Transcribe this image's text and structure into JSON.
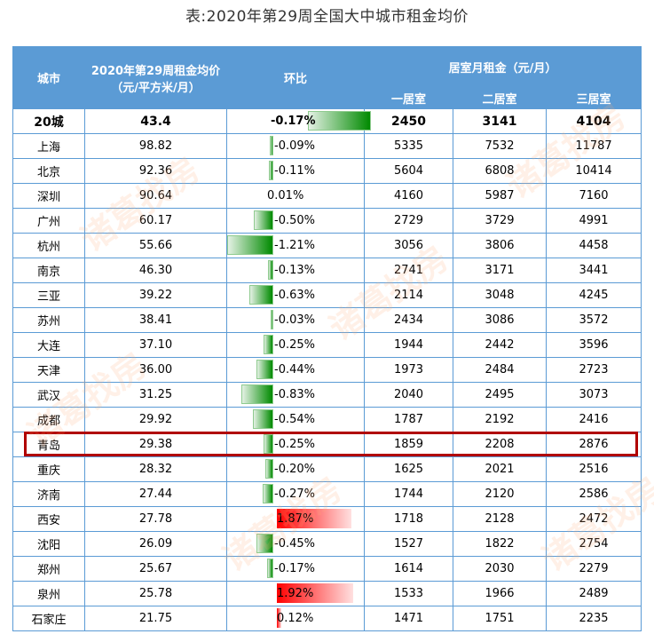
{
  "title": "表:2020年第29周全国大中城市租金均价",
  "watermark": "诸葛找房",
  "header": {
    "city": "城市",
    "price_line1": "2020年第29周租金均价",
    "price_line2": "（元/平方米/月）",
    "change": "环比",
    "rent_group": "居室月租金（元/月）",
    "room1": "一居室",
    "room2": "二居室",
    "room3": "三居室"
  },
  "colors": {
    "header_bg": "#5b9bd5",
    "grid": "#5b9bd5",
    "neg_bar": "#008a00",
    "pos_bar": "#ff0000",
    "highlight": "#b00000"
  },
  "highlighted_city": "青岛",
  "rows": [
    {
      "city": "20城",
      "price": "43.4",
      "change": "-0.17%",
      "change_val": -0.17,
      "r1": "2450",
      "r2": "3141",
      "r3": "4104",
      "total": true
    },
    {
      "city": "上海",
      "price": "98.82",
      "change": "-0.09%",
      "change_val": -0.09,
      "r1": "5335",
      "r2": "7532",
      "r3": "11787"
    },
    {
      "city": "北京",
      "price": "92.36",
      "change": "-0.11%",
      "change_val": -0.11,
      "r1": "5604",
      "r2": "6808",
      "r3": "10414"
    },
    {
      "city": "深圳",
      "price": "90.64",
      "change": "0.01%",
      "change_val": 0.01,
      "r1": "4160",
      "r2": "5987",
      "r3": "7160"
    },
    {
      "city": "广州",
      "price": "60.17",
      "change": "-0.50%",
      "change_val": -0.5,
      "r1": "2729",
      "r2": "3729",
      "r3": "4991"
    },
    {
      "city": "杭州",
      "price": "55.66",
      "change": "-1.21%",
      "change_val": -1.21,
      "r1": "3056",
      "r2": "3806",
      "r3": "4458"
    },
    {
      "city": "南京",
      "price": "46.30",
      "change": "-0.13%",
      "change_val": -0.13,
      "r1": "2741",
      "r2": "3171",
      "r3": "3441"
    },
    {
      "city": "三亚",
      "price": "39.22",
      "change": "-0.63%",
      "change_val": -0.63,
      "r1": "2114",
      "r2": "3048",
      "r3": "4245"
    },
    {
      "city": "苏州",
      "price": "38.41",
      "change": "-0.03%",
      "change_val": -0.03,
      "r1": "2434",
      "r2": "3086",
      "r3": "3572"
    },
    {
      "city": "大连",
      "price": "37.10",
      "change": "-0.25%",
      "change_val": -0.25,
      "r1": "1944",
      "r2": "2442",
      "r3": "3596"
    },
    {
      "city": "天津",
      "price": "36.00",
      "change": "-0.44%",
      "change_val": -0.44,
      "r1": "1973",
      "r2": "2484",
      "r3": "2723"
    },
    {
      "city": "武汉",
      "price": "31.25",
      "change": "-0.83%",
      "change_val": -0.83,
      "r1": "2040",
      "r2": "2495",
      "r3": "3073"
    },
    {
      "city": "成都",
      "price": "29.92",
      "change": "-0.54%",
      "change_val": -0.54,
      "r1": "1787",
      "r2": "2192",
      "r3": "2416"
    },
    {
      "city": "青岛",
      "price": "29.38",
      "change": "-0.25%",
      "change_val": -0.25,
      "r1": "1859",
      "r2": "2208",
      "r3": "2876"
    },
    {
      "city": "重庆",
      "price": "28.32",
      "change": "-0.20%",
      "change_val": -0.2,
      "r1": "1625",
      "r2": "2021",
      "r3": "2516"
    },
    {
      "city": "济南",
      "price": "27.44",
      "change": "-0.27%",
      "change_val": -0.27,
      "r1": "1744",
      "r2": "2120",
      "r3": "2586"
    },
    {
      "city": "西安",
      "price": "27.78",
      "change": "1.87%",
      "change_val": 1.87,
      "r1": "1718",
      "r2": "2128",
      "r3": "2472"
    },
    {
      "city": "沈阳",
      "price": "26.09",
      "change": "-0.45%",
      "change_val": -0.45,
      "r1": "1527",
      "r2": "1822",
      "r3": "2754"
    },
    {
      "city": "郑州",
      "price": "25.67",
      "change": "-0.17%",
      "change_val": -0.17,
      "r1": "1614",
      "r2": "2030",
      "r3": "2279"
    },
    {
      "city": "泉州",
      "price": "25.78",
      "change": "1.92%",
      "change_val": 1.92,
      "r1": "1533",
      "r2": "1966",
      "r3": "2489"
    },
    {
      "city": "石家庄",
      "price": "21.75",
      "change": "0.12%",
      "change_val": 0.12,
      "r1": "1471",
      "r2": "1751",
      "r3": "2235"
    }
  ]
}
